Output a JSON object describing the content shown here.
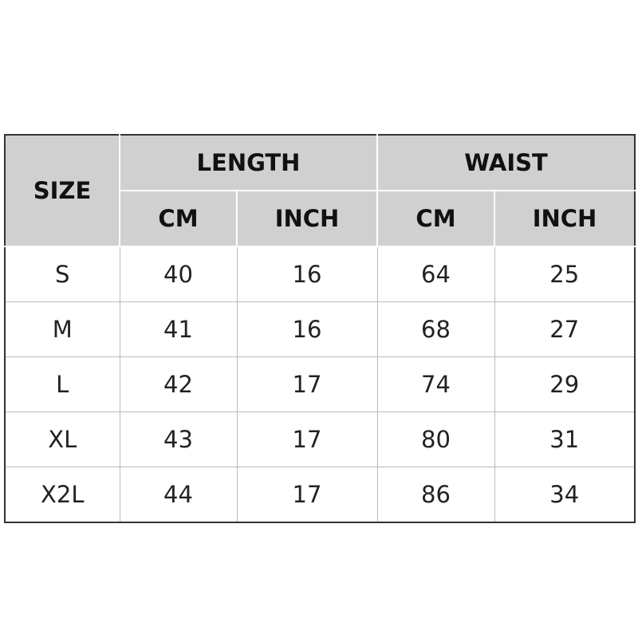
{
  "table": {
    "size_header": "SIZE",
    "groups": [
      "LENGTH",
      "WAIST"
    ],
    "units": [
      "CM",
      "INCH",
      "CM",
      "INCH"
    ],
    "rows": [
      [
        "S",
        "40",
        "16",
        "64",
        "25"
      ],
      [
        "M",
        "41",
        "16",
        "68",
        "27"
      ],
      [
        "L",
        "42",
        "17",
        "74",
        "29"
      ],
      [
        "XL",
        "43",
        "17",
        "80",
        "31"
      ],
      [
        "X2L",
        "44",
        "17",
        "86",
        "34"
      ]
    ]
  }
}
